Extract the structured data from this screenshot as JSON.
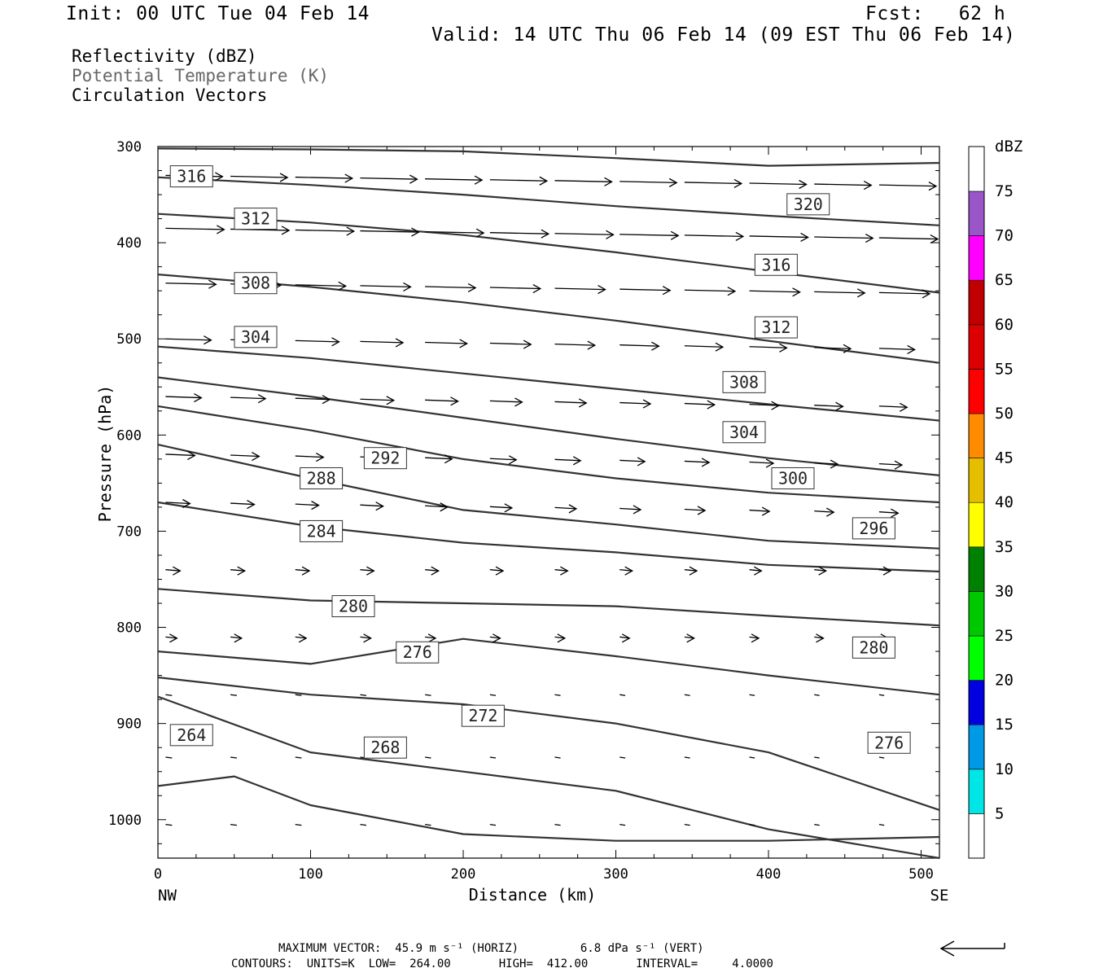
{
  "header": {
    "init": "Init: 00 UTC Tue 04 Feb 14",
    "fcst": "Fcst:   62 h",
    "valid": "Valid: 14 UTC Thu 06 Feb 14 (09 EST Thu 06 Feb 14)"
  },
  "fields": {
    "reflectivity": "Reflectivity (dBZ)",
    "theta": "Potential Temperature (K)",
    "vectors": "Circulation Vectors"
  },
  "footer": {
    "max_vector": "MAXIMUM VECTOR:  45.9 m s⁻¹ (HORIZ)         6.8 dPa s⁻¹ (VERT)",
    "contours": "CONTOURS:  UNITS=K  LOW=  264.00       HIGH=  412.00       INTERVAL=     4.0000"
  },
  "colors": {
    "contour": "#333333",
    "vector": "#000000",
    "axis": "#000000"
  },
  "colorbar": {
    "title": "dBZ",
    "levels": [
      {
        "label": "5",
        "color": "#00e5e5"
      },
      {
        "label": "10",
        "color": "#0099e6"
      },
      {
        "label": "15",
        "color": "#0000e0"
      },
      {
        "label": "20",
        "color": "#00ff00"
      },
      {
        "label": "25",
        "color": "#00c800"
      },
      {
        "label": "30",
        "color": "#008000"
      },
      {
        "label": "35",
        "color": "#ffff00"
      },
      {
        "label": "40",
        "color": "#e6be00"
      },
      {
        "label": "45",
        "color": "#ff8c00"
      },
      {
        "label": "50",
        "color": "#ff0000"
      },
      {
        "label": "55",
        "color": "#dd0000"
      },
      {
        "label": "60",
        "color": "#c00000"
      },
      {
        "label": "65",
        "color": "#ff00ff"
      },
      {
        "label": "70",
        "color": "#9a55c8"
      },
      {
        "label": "75",
        "color": "#ffffff"
      }
    ]
  },
  "chart_data": {
    "type": "line",
    "xlabel": "Distance (km)",
    "ylabel": "Pressure (hPa)",
    "xlim": [
      0,
      512
    ],
    "ylim": [
      1040,
      300
    ],
    "xticks": [
      0,
      100,
      200,
      300,
      400,
      500
    ],
    "yticks": [
      300,
      400,
      500,
      600,
      700,
      800,
      900,
      1000
    ],
    "x_end_labels": {
      "left": "NW",
      "right": "SE"
    },
    "series": [
      {
        "x": [
          0,
          100,
          200,
          300,
          400,
          512
        ],
        "y": [
          302,
          303,
          305,
          312,
          320,
          317
        ]
      },
      {
        "x": [
          0,
          100,
          200,
          300,
          400,
          512
        ],
        "y": [
          332,
          340,
          350,
          362,
          372,
          382
        ]
      },
      {
        "x": [
          0,
          100,
          200,
          300,
          400,
          512
        ],
        "y": [
          370,
          379,
          392,
          410,
          430,
          452
        ]
      },
      {
        "x": [
          0,
          100,
          200,
          300,
          400,
          512
        ],
        "y": [
          433,
          446,
          462,
          481,
          502,
          525
        ]
      },
      {
        "x": [
          0,
          100,
          200,
          300,
          400,
          512
        ],
        "y": [
          508,
          520,
          536,
          552,
          568,
          585
        ]
      },
      {
        "x": [
          0,
          100,
          200,
          300,
          400,
          512
        ],
        "y": [
          540,
          560,
          582,
          604,
          624,
          642
        ]
      },
      {
        "x": [
          0,
          100,
          200,
          300,
          400,
          512
        ],
        "y": [
          570,
          595,
          625,
          645,
          660,
          670
        ]
      },
      {
        "x": [
          0,
          100,
          200,
          300,
          400,
          512
        ],
        "y": [
          610,
          645,
          678,
          693,
          710,
          718
        ]
      },
      {
        "x": [
          0,
          100,
          200,
          300,
          400,
          512
        ],
        "y": [
          670,
          695,
          712,
          722,
          735,
          742
        ]
      },
      {
        "x": [
          0,
          100,
          200,
          300,
          400,
          512
        ],
        "y": [
          760,
          772,
          775,
          778,
          788,
          798
        ]
      },
      {
        "x": [
          0,
          100,
          200,
          300,
          400,
          512
        ],
        "y": [
          825,
          838,
          812,
          830,
          850,
          870
        ]
      },
      {
        "x": [
          0,
          100,
          200,
          300,
          400,
          512
        ],
        "y": [
          852,
          870,
          880,
          900,
          930,
          990
        ]
      },
      {
        "x": [
          0,
          100,
          200,
          300,
          400,
          512
        ],
        "y": [
          872,
          930,
          950,
          970,
          1010,
          1040
        ]
      },
      {
        "x": [
          0,
          50,
          100,
          200,
          300,
          400,
          512
        ],
        "y": [
          965,
          955,
          985,
          1015,
          1022,
          1022,
          1018
        ]
      }
    ],
    "contour_labels": [
      {
        "text": "316",
        "x": 22,
        "p": 331
      },
      {
        "text": "320",
        "x": 426,
        "p": 360
      },
      {
        "text": "312",
        "x": 64,
        "p": 375
      },
      {
        "text": "316",
        "x": 405,
        "p": 423
      },
      {
        "text": "308",
        "x": 64,
        "p": 442
      },
      {
        "text": "312",
        "x": 405,
        "p": 488
      },
      {
        "text": "304",
        "x": 64,
        "p": 498
      },
      {
        "text": "308",
        "x": 384,
        "p": 545
      },
      {
        "text": "304",
        "x": 384,
        "p": 597
      },
      {
        "text": "292",
        "x": 149,
        "p": 624
      },
      {
        "text": "300",
        "x": 416,
        "p": 645
      },
      {
        "text": "288",
        "x": 107,
        "p": 645
      },
      {
        "text": "296",
        "x": 469,
        "p": 697
      },
      {
        "text": "284",
        "x": 107,
        "p": 700
      },
      {
        "text": "280",
        "x": 128,
        "p": 778
      },
      {
        "text": "280",
        "x": 469,
        "p": 821
      },
      {
        "text": "276",
        "x": 170,
        "p": 826
      },
      {
        "text": "272",
        "x": 213,
        "p": 892
      },
      {
        "text": "264",
        "x": 22,
        "p": 912
      },
      {
        "text": "276",
        "x": 479,
        "p": 920
      },
      {
        "text": "268",
        "x": 149,
        "p": 925
      }
    ]
  }
}
